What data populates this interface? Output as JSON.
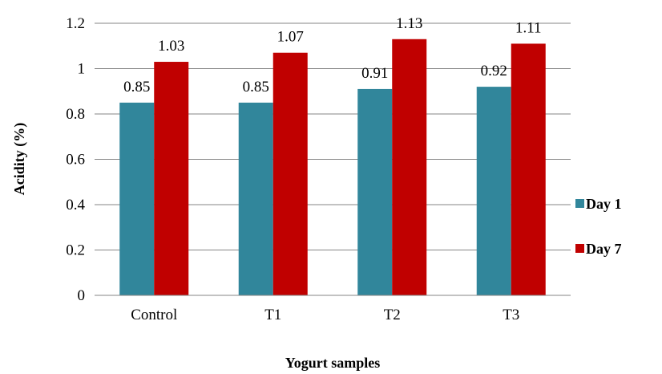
{
  "chart_data": {
    "type": "bar",
    "categories": [
      "Control",
      "T1",
      "T2",
      "T3"
    ],
    "series": [
      {
        "name": "Day 1",
        "values": [
          0.85,
          0.85,
          0.91,
          0.92
        ],
        "labels": [
          "0.85",
          "0.85",
          "0.91",
          "0.92"
        ],
        "color": "#31869B"
      },
      {
        "name": "Day 7",
        "values": [
          1.03,
          1.07,
          1.13,
          1.11
        ],
        "labels": [
          "1.03",
          "1.07",
          "1.13",
          "1.11"
        ],
        "color": "#C00000"
      }
    ],
    "xlabel": "Yogurt samples",
    "ylabel": "Acidity (%)",
    "ylim": [
      0,
      1.2
    ],
    "yticks": [
      "0",
      "0.2",
      "0.4",
      "0.6",
      "0.8",
      "1",
      "1.2"
    ],
    "grid": true,
    "legend_position": "right"
  }
}
